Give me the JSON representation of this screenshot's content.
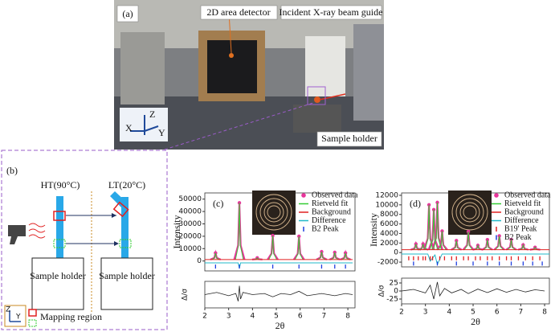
{
  "panels": {
    "a": {
      "label": "(a)",
      "detector": "2D area detector",
      "beam": "Incident X-ray beam guide",
      "holder": "Sample holder",
      "axes": [
        "Z",
        "X",
        "Y"
      ]
    },
    "b": {
      "label": "(b)",
      "ht": "HT(90°C)",
      "lt": "LT(20°C)",
      "holders": [
        "Sample holder",
        "Sample holder"
      ],
      "mapping": "Mapping region",
      "axes": [
        "Z",
        "Y"
      ]
    }
  },
  "chart_data": [
    {
      "type": "line",
      "panel_label": "(c)",
      "ylabel": "Intensity",
      "xlabel": "2θ",
      "xlim": [
        2,
        8.3
      ],
      "xticks": [
        2,
        3,
        4,
        5,
        6,
        7,
        8
      ],
      "ylim": [
        -8000,
        55000
      ],
      "yticks": [
        0,
        10000,
        20000,
        30000,
        40000,
        50000
      ],
      "series": [
        {
          "name": "Observed data",
          "color": "#e8349b",
          "style": "points",
          "x": [
            2.45,
            3.45,
            4.2,
            4.85,
            5.95,
            6.9,
            7.45,
            7.9
          ],
          "values": [
            6500,
            47000,
            2500,
            20500,
            20000,
            7500,
            7000,
            6500
          ]
        },
        {
          "name": "Rietveld fit",
          "color": "#33cc33",
          "style": "peaks",
          "x": [
            2.45,
            3.45,
            4.2,
            4.85,
            5.95,
            6.9,
            7.45,
            7.9
          ],
          "values": [
            6500,
            47000,
            2500,
            20500,
            20000,
            7500,
            7000,
            6500
          ]
        },
        {
          "name": "Background",
          "color": "#e02020",
          "style": "line",
          "x": [
            2,
            8.2
          ],
          "values": [
            1200,
            1200
          ]
        },
        {
          "name": "Difference",
          "color": "#20b8c8",
          "style": "line",
          "x": [
            2,
            3.4,
            3.45,
            3.5,
            8.2
          ],
          "values": [
            -1500,
            -1500,
            -6000,
            -1500,
            -1500
          ]
        },
        {
          "name": "B2 Peak",
          "color": "#1f3fdf",
          "style": "ticks",
          "x": [
            2.45,
            3.45,
            4.85,
            5.95,
            6.9,
            7.45,
            7.9
          ],
          "values": [
            -4500,
            -4500,
            -4500,
            -4500,
            -4500,
            -4500,
            -4500
          ]
        }
      ],
      "residual": {
        "ylabel": "Δ/σ",
        "ylim": [
          -12,
          12
        ],
        "x": [
          2,
          2.5,
          3,
          3.3,
          3.4,
          3.45,
          3.5,
          3.6,
          4,
          4.5,
          4.85,
          5.2,
          5.6,
          5.95,
          6.3,
          6.9,
          7.45,
          7.9,
          8.2
        ],
        "values": [
          0,
          2,
          -1,
          1,
          -6,
          8,
          -4,
          2,
          0,
          1,
          -2,
          1,
          0,
          3,
          -1,
          1,
          -1,
          1,
          0
        ]
      }
    },
    {
      "type": "line",
      "panel_label": "(d)",
      "ylabel": "Intensity",
      "xlabel": "2θ",
      "xlim": [
        2,
        8.2
      ],
      "xticks": [
        2,
        3,
        4,
        5,
        6,
        7,
        8
      ],
      "ylim": [
        -3000,
        12500
      ],
      "yticks": [
        -2000,
        0,
        2000,
        4000,
        6000,
        8000,
        10000,
        12000
      ],
      "series": [
        {
          "name": "Observed data",
          "color": "#e8349b",
          "style": "points",
          "x": [
            2.6,
            2.9,
            3.15,
            3.35,
            3.5,
            3.7,
            4.3,
            4.8,
            5.2,
            5.6,
            6.1,
            6.6,
            7.1,
            7.6
          ],
          "values": [
            1800,
            1800,
            10000,
            9000,
            10500,
            4500,
            2500,
            4400,
            1500,
            2700,
            3500,
            2700,
            1600,
            1100
          ]
        },
        {
          "name": "Rietveld fit",
          "color": "#33cc33",
          "style": "peaks",
          "x": [
            2.6,
            2.9,
            3.15,
            3.35,
            3.5,
            3.7,
            4.3,
            4.8,
            5.2,
            5.6,
            6.1,
            6.6,
            7.1,
            7.6
          ],
          "values": [
            1800,
            1800,
            10000,
            9000,
            10500,
            4500,
            2500,
            4400,
            1500,
            2700,
            3500,
            2700,
            1600,
            1100
          ]
        },
        {
          "name": "Background",
          "color": "#e02020",
          "style": "line",
          "x": [
            2,
            8.2
          ],
          "values": [
            600,
            600
          ]
        },
        {
          "name": "Difference",
          "color": "#20b8c8",
          "style": "line",
          "x": [
            2,
            3.1,
            3.2,
            3.4,
            3.5,
            3.7,
            8.2
          ],
          "values": [
            -300,
            -300,
            -1800,
            -500,
            -2500,
            -300,
            -300
          ]
        },
        {
          "name": "B19' Peak",
          "color": "#e02020",
          "style": "ticks",
          "x": [
            2.3,
            2.5,
            2.7,
            2.9,
            3.0,
            3.2,
            3.3,
            3.6,
            3.8,
            4.1,
            4.3,
            4.6,
            4.8,
            5.1,
            5.3,
            5.6,
            5.8,
            6.1,
            6.4,
            6.6,
            6.9,
            7.2,
            7.5,
            7.8
          ],
          "values": [
            -1200,
            -1200,
            -1200,
            -1200,
            -1200,
            -1200,
            -1200,
            -1200,
            -1200,
            -1200,
            -1200,
            -1200,
            -1200,
            -1200,
            -1200,
            -1200,
            -1200,
            -1200,
            -1200,
            -1200,
            -1200,
            -1200,
            -1200,
            -1200
          ]
        },
        {
          "name": "B2 Peak",
          "color": "#1f3fdf",
          "style": "ticks",
          "x": [
            2.5,
            3.5,
            4.3,
            5.0,
            5.6,
            6.1,
            6.6,
            7.1,
            7.5,
            7.9
          ],
          "values": [
            -2300,
            -2300,
            -2300,
            -2300,
            -2300,
            -2300,
            -2300,
            -2300,
            -2300,
            -2300
          ]
        }
      ],
      "residual": {
        "ylabel": "Δ/σ",
        "ylim": [
          -40,
          40
        ],
        "yticks": [
          -25,
          0,
          25
        ],
        "x": [
          2,
          2.5,
          3,
          3.2,
          3.35,
          3.5,
          3.6,
          3.8,
          4.1,
          4.5,
          4.8,
          5.2,
          5.6,
          6.0,
          6.4,
          6.8,
          7.2,
          7.6,
          8.0
        ],
        "values": [
          0,
          5,
          -6,
          18,
          -25,
          28,
          -15,
          8,
          -6,
          5,
          -8,
          6,
          -5,
          7,
          -4,
          5,
          -3,
          4,
          0
        ]
      }
    }
  ]
}
